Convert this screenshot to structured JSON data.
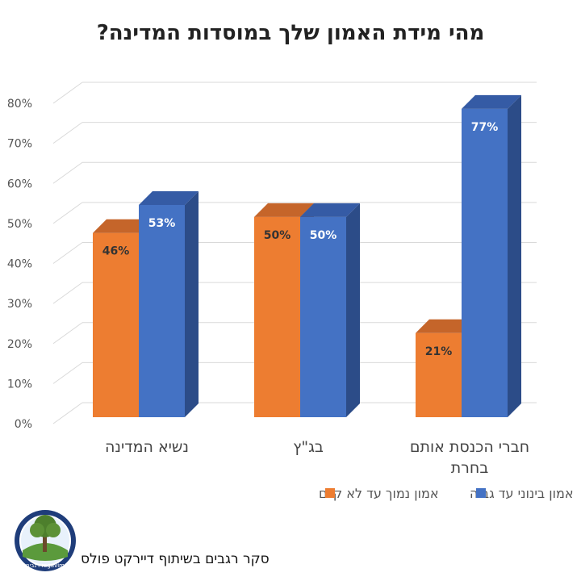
{
  "chart_data": {
    "type": "bar",
    "title": "מהי מידת האמון שלך במוסדות המדינה?",
    "categories": [
      "נשיא המדינה",
      "בג\"ץ",
      "חברי הכנסת אותם בחרת"
    ],
    "series": [
      {
        "name": "אמון נמוך עד לא קיים",
        "values": [
          46,
          50,
          21
        ],
        "labels": [
          "46%",
          "50%",
          "21%"
        ]
      },
      {
        "name": "אמון בינוני עד גבוה",
        "values": [
          53,
          50,
          77
        ],
        "labels": [
          "53%",
          "50%",
          "77%"
        ]
      }
    ],
    "ylim": [
      0,
      80
    ],
    "yticks": [
      "0%",
      "10%",
      "20%",
      "30%",
      "40%",
      "50%",
      "60%",
      "70%",
      "80%"
    ],
    "grid": true,
    "legend": "bottom",
    "colors": {
      "series0_front": "#ED7D31",
      "series0_side": "#A8531C",
      "series0_top": "#C5652A",
      "series1_front": "#4472C4",
      "series1_side": "#2C4C88",
      "series1_top": "#355BA5"
    }
  },
  "footer": {
    "credit": "סקר רגבים בשיתוף דיירקט פולס",
    "logo_text": "רגבים regavim"
  }
}
